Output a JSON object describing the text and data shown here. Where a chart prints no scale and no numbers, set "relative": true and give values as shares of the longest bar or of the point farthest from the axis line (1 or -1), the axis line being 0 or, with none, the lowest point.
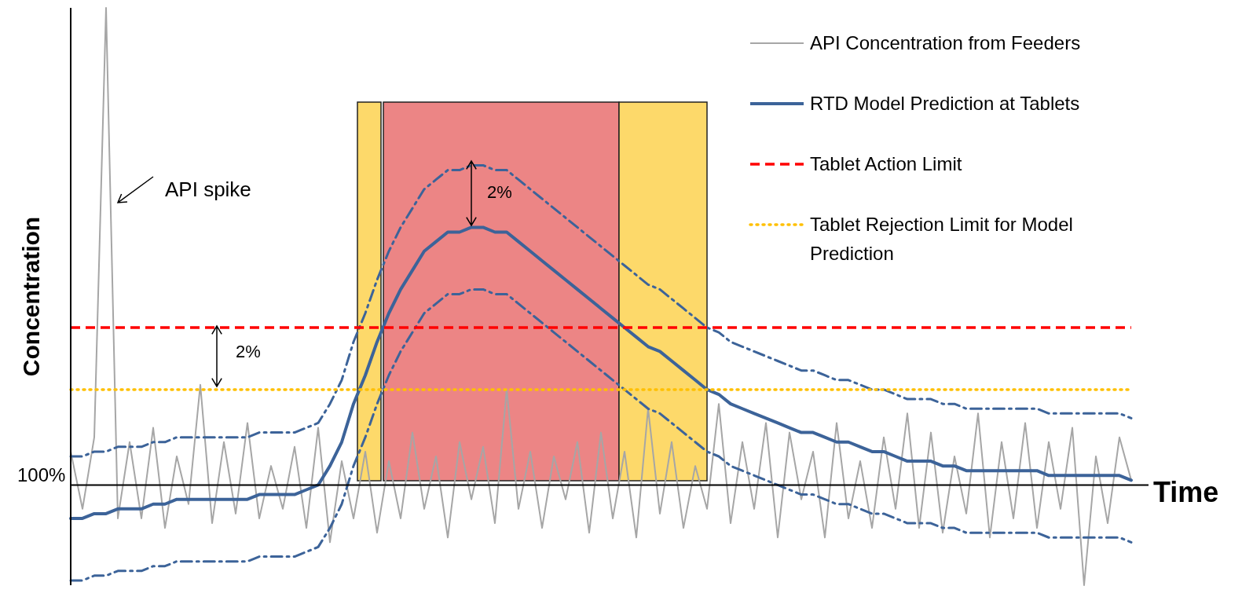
{
  "chart_data": {
    "type": "line",
    "xlabel": "Time",
    "ylabel": "Concentration",
    "relative": true,
    "categories": [
      null,
      null,
      null,
      null,
      null,
      null,
      null,
      null,
      null,
      null,
      null,
      null,
      null,
      null,
      null,
      null,
      null,
      null,
      null,
      null,
      null,
      null,
      null,
      null,
      null,
      null,
      null,
      null,
      null,
      null,
      null,
      null,
      null,
      null,
      null,
      null,
      null,
      null,
      null,
      null,
      null,
      null,
      null,
      null,
      null,
      null,
      null,
      null,
      null,
      null,
      null,
      null,
      null,
      null,
      null,
      null,
      null,
      null,
      null,
      null,
      null,
      null,
      null,
      null,
      null,
      null,
      null,
      null,
      null,
      null,
      null,
      null,
      null,
      null,
      null,
      null,
      null,
      null,
      null,
      null,
      null,
      null,
      null,
      null,
      null,
      null,
      null,
      null,
      null,
      null,
      null
    ],
    "series": [
      {
        "name": "API Concentration from Feeders",
        "color": "#a6a6a6",
        "line_style": "solid",
        "values": [
          0.07,
          -0.05,
          0.1,
          1,
          -0.07,
          0.09,
          -0.07,
          0.12,
          -0.09,
          0.06,
          -0.04,
          0.21,
          -0.08,
          0.09,
          -0.06,
          0.13,
          -0.07,
          0.04,
          -0.05,
          0.08,
          -0.09,
          0.12,
          -0.12,
          0.05,
          -0.07,
          0.07,
          -0.1,
          0.05,
          -0.07,
          0.11,
          -0.05,
          0.06,
          -0.11,
          0.09,
          -0.03,
          0.08,
          -0.08,
          0.2,
          -0.05,
          0.07,
          -0.09,
          0.06,
          -0.03,
          0.09,
          -0.1,
          0.11,
          -0.07,
          0.07,
          -0.11,
          0.16,
          -0.06,
          0.09,
          -0.09,
          0.04,
          -0.05,
          0.17,
          -0.08,
          0.09,
          -0.05,
          0.13,
          -0.11,
          0.11,
          -0.03,
          0.07,
          -0.11,
          0.13,
          -0.07,
          0.05,
          -0.09,
          0.1,
          -0.05,
          0.15,
          -0.09,
          0.11,
          -0.1,
          0.06,
          -0.06,
          0.15,
          -0.11,
          0.09,
          -0.07,
          0.13,
          -0.09,
          0.09,
          -0.05,
          0.12,
          -0.21,
          0.06,
          -0.08,
          0.1,
          0.01
        ]
      },
      {
        "color": "#3c6399",
        "line_style": "dashed",
        "values": [
          0.06,
          0.06,
          0.07,
          0.07,
          0.08,
          0.08,
          0.08,
          0.09,
          0.09,
          0.1,
          0.1,
          0.1,
          0.1,
          0.1,
          0.1,
          0.1,
          0.11,
          0.11,
          0.11,
          0.11,
          0.12,
          0.13,
          0.17,
          0.22,
          0.3,
          0.36,
          0.43,
          0.49,
          0.54,
          0.58,
          0.62,
          0.64,
          0.66,
          0.66,
          0.67,
          0.67,
          0.66,
          0.66,
          0.64,
          0.62,
          0.6,
          0.58,
          0.56,
          0.54,
          0.52,
          0.5,
          0.48,
          0.46,
          0.44,
          0.42,
          0.41,
          0.39,
          0.37,
          0.35,
          0.33,
          0.32,
          0.3,
          0.29,
          0.28,
          0.27,
          0.26,
          0.25,
          0.24,
          0.24,
          0.23,
          0.22,
          0.22,
          0.21,
          0.2,
          0.2,
          0.19,
          0.18,
          0.18,
          0.18,
          0.17,
          0.17,
          0.16,
          0.16,
          0.16,
          0.16,
          0.16,
          0.16,
          0.16,
          0.15,
          0.15,
          0.15,
          0.15,
          0.15,
          0.15,
          0.15,
          0.14
        ]
      },
      {
        "color": "#3c6399",
        "line_style": "dashed",
        "values": [
          -0.2,
          -0.2,
          -0.19,
          -0.19,
          -0.18,
          -0.18,
          -0.18,
          -0.17,
          -0.17,
          -0.16,
          -0.16,
          -0.16,
          -0.16,
          -0.16,
          -0.16,
          -0.16,
          -0.15,
          -0.15,
          -0.15,
          -0.15,
          -0.14,
          -0.13,
          -0.09,
          -0.04,
          0.04,
          0.1,
          0.17,
          0.23,
          0.28,
          0.32,
          0.36,
          0.38,
          0.4,
          0.4,
          0.41,
          0.41,
          0.4,
          0.4,
          0.38,
          0.36,
          0.34,
          0.32,
          0.3,
          0.28,
          0.26,
          0.24,
          0.22,
          0.2,
          0.18,
          0.16,
          0.15,
          0.13,
          0.11,
          0.09,
          0.07,
          0.06,
          0.04,
          0.03,
          0.02,
          0.01,
          0,
          -0.01,
          -0.02,
          -0.02,
          -0.03,
          -0.04,
          -0.04,
          -0.05,
          -0.06,
          -0.06,
          -0.07,
          -0.08,
          -0.08,
          -0.08,
          -0.09,
          -0.09,
          -0.1,
          -0.1,
          -0.1,
          -0.1,
          -0.1,
          -0.1,
          -0.1,
          -0.11,
          -0.11,
          -0.11,
          -0.11,
          -0.11,
          -0.11,
          -0.11,
          -0.12
        ]
      },
      {
        "name": "RTD Model Prediction at Tablets",
        "color": "#3c6399",
        "line_style": "solid",
        "values": [
          -0.07,
          -0.07,
          -0.06,
          -0.06,
          -0.05,
          -0.05,
          -0.05,
          -0.04,
          -0.04,
          -0.03,
          -0.03,
          -0.03,
          -0.03,
          -0.03,
          -0.03,
          -0.03,
          -0.02,
          -0.02,
          -0.02,
          -0.02,
          -0.01,
          0,
          0.04,
          0.09,
          0.17,
          0.23,
          0.3,
          0.36,
          0.41,
          0.45,
          0.49,
          0.51,
          0.53,
          0.53,
          0.54,
          0.54,
          0.53,
          0.53,
          0.51,
          0.49,
          0.47,
          0.45,
          0.43,
          0.41,
          0.39,
          0.37,
          0.35,
          0.33,
          0.31,
          0.29,
          0.28,
          0.26,
          0.24,
          0.22,
          0.2,
          0.19,
          0.17,
          0.16,
          0.15,
          0.14,
          0.13,
          0.12,
          0.11,
          0.11,
          0.1,
          0.09,
          0.09,
          0.08,
          0.07,
          0.07,
          0.06,
          0.05,
          0.05,
          0.05,
          0.04,
          0.04,
          0.03,
          0.03,
          0.03,
          0.03,
          0.03,
          0.03,
          0.03,
          0.02,
          0.02,
          0.02,
          0.02,
          0.02,
          0.02,
          0.02,
          0.01
        ]
      }
    ],
    "ref_lines": [
      {
        "axis": "y",
        "value": 0.33,
        "label": "Tablet Action Limit",
        "color": "#ff0000",
        "line_style": "dashed"
      },
      {
        "axis": "y",
        "value": 0.2,
        "label": "Tablet Rejection Limit for Model Prediction",
        "color": "#ffc000",
        "line_style": "dotted"
      }
    ],
    "annotations": [
      "API spike",
      "2%",
      "2%",
      "100%"
    ],
    "legend": "top right"
  }
}
